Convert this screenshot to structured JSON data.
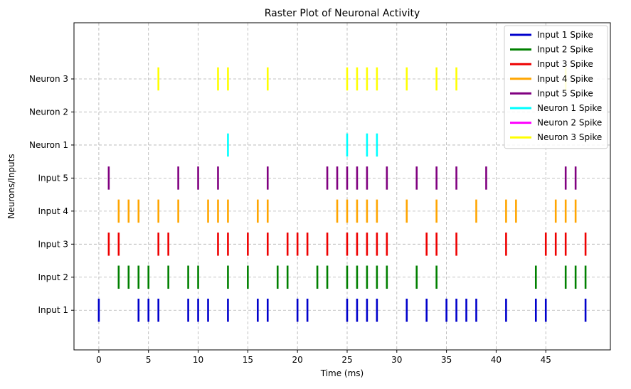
{
  "chart_data": {
    "type": "raster",
    "title": "Raster Plot of Neuronal Activity",
    "xlabel": "Time (ms)",
    "ylabel": "Neurons/Inputs",
    "xlim": [
      -2.5,
      51.5
    ],
    "ylim": [
      -1.2,
      8.7
    ],
    "x_ticks": [
      0,
      5,
      10,
      15,
      20,
      25,
      30,
      35,
      40,
      45
    ],
    "y_categories": [
      "Input 1",
      "Input 2",
      "Input 3",
      "Input 4",
      "Input 5",
      "Neuron 1",
      "Neuron 2",
      "Neuron 3"
    ],
    "grid": true,
    "legend_position": "top-right",
    "series": [
      {
        "name": "Input 1 Spike",
        "row": 0,
        "color": "#0000cc",
        "spikes": [
          0,
          4,
          5,
          6,
          9,
          10,
          11,
          13,
          16,
          17,
          20,
          21,
          25,
          26,
          27,
          28,
          31,
          33,
          35,
          36,
          37,
          38,
          41,
          44,
          45,
          49
        ]
      },
      {
        "name": "Input 2 Spike",
        "row": 1,
        "color": "#008000",
        "spikes": [
          2,
          3,
          4,
          5,
          7,
          9,
          10,
          13,
          15,
          18,
          19,
          22,
          23,
          25,
          26,
          27,
          28,
          29,
          32,
          34,
          44,
          47,
          48,
          49
        ]
      },
      {
        "name": "Input 3 Spike",
        "row": 2,
        "color": "#ee0000",
        "spikes": [
          1,
          2,
          6,
          7,
          12,
          13,
          15,
          17,
          19,
          20,
          21,
          23,
          25,
          26,
          27,
          28,
          29,
          33,
          34,
          36,
          41,
          45,
          46,
          47,
          49
        ]
      },
      {
        "name": "Input 4 Spike",
        "row": 3,
        "color": "#ffa500",
        "spikes": [
          2,
          3,
          4,
          6,
          8,
          11,
          12,
          13,
          16,
          17,
          24,
          25,
          26,
          27,
          28,
          31,
          34,
          38,
          41,
          42,
          46,
          47,
          48
        ]
      },
      {
        "name": "Input 5 Spike",
        "row": 4,
        "color": "#800080",
        "spikes": [
          1,
          8,
          10,
          12,
          17,
          23,
          24,
          25,
          26,
          27,
          29,
          32,
          34,
          36,
          39,
          47,
          48
        ]
      },
      {
        "name": "Neuron 1 Spike",
        "row": 5,
        "color": "#00ffff",
        "spikes": [
          13,
          25,
          27,
          28
        ]
      },
      {
        "name": "Neuron 2 Spike",
        "row": 6,
        "color": "#ff00ff",
        "spikes": []
      },
      {
        "name": "Neuron 3 Spike",
        "row": 7,
        "color": "#ffff00",
        "spikes": [
          6,
          12,
          13,
          17,
          25,
          26,
          27,
          28,
          31,
          34,
          36,
          47
        ]
      }
    ]
  }
}
